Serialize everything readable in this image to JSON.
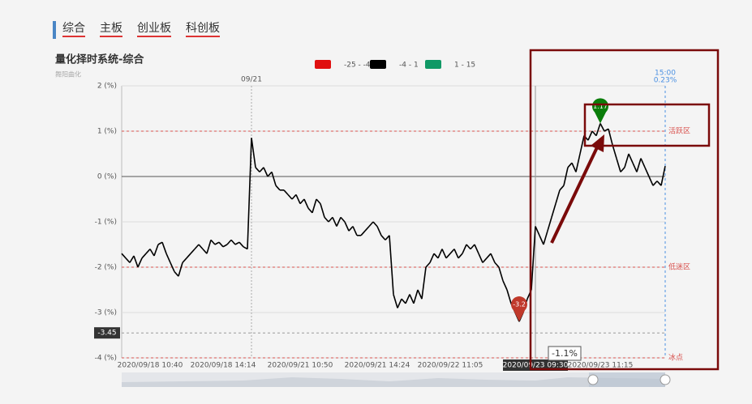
{
  "tabs": [
    "综合",
    "主板",
    "创业板",
    "科创板"
  ],
  "chart_data": {
    "type": "line",
    "title": "量化择时系统-综合",
    "subtitle": "舞阳曲化",
    "legend": [
      {
        "label": "-25 - -4",
        "color": "#e01010",
        "range": [
          -25,
          -4
        ]
      },
      {
        "label": "-4 - 1",
        "color": "#000000",
        "range": [
          -4,
          1
        ]
      },
      {
        "label": "1 - 15",
        "color": "#119966",
        "range": [
          1,
          15
        ]
      }
    ],
    "xlim": [
      0,
      134
    ],
    "xticks": [
      {
        "value": 7,
        "label": "2020/09/18 10:40"
      },
      {
        "value": 25,
        "label": "2020/09/18 14:14"
      },
      {
        "value": 44,
        "label": "2020/09/21 10:50"
      },
      {
        "value": 63,
        "label": "2020/09/21 14:24"
      },
      {
        "value": 81,
        "label": "2020/09/22 11:05"
      },
      {
        "value": 118,
        "label": "2020/09/23 11:15"
      }
    ],
    "ylim": [
      -4,
      2
    ],
    "yticks": [
      {
        "value": 2,
        "label": "2 (%)"
      },
      {
        "value": 1,
        "label": "1 (%)"
      },
      {
        "value": 0,
        "label": "0 (%)"
      },
      {
        "value": -1,
        "label": "-1 (%)"
      },
      {
        "value": -2,
        "label": "-2 (%)"
      },
      {
        "value": -3,
        "label": "-3 (%)"
      },
      {
        "value": -4,
        "label": "-4 (%)"
      }
    ],
    "grid": true,
    "zones": [
      {
        "value": 1,
        "label": "活跃区"
      },
      {
        "value": -2,
        "label": "低迷区"
      },
      {
        "value": -4,
        "label": "冰点"
      }
    ],
    "threshold": {
      "value": -3.45,
      "label": "-3.45"
    },
    "day_marks": [
      {
        "x": 32,
        "label": "09/21"
      }
    ],
    "end": {
      "time": "15:00",
      "value_label": "0.23%"
    },
    "min_label": "-3.2",
    "max_label": "1.17",
    "crosshair": {
      "x": 102,
      "time_label": "2020/09/23 09:30",
      "value_label": "-1.1%"
    },
    "series": [
      {
        "name": "综合",
        "values": [
          -1.7,
          -1.8,
          -1.9,
          -1.75,
          -2.0,
          -1.8,
          -1.7,
          -1.6,
          -1.75,
          -1.5,
          -1.45,
          -1.7,
          -1.9,
          -2.1,
          -2.2,
          -1.9,
          -1.8,
          -1.7,
          -1.6,
          -1.5,
          -1.6,
          -1.7,
          -1.4,
          -1.5,
          -1.45,
          -1.55,
          -1.5,
          -1.4,
          -1.5,
          -1.45,
          -1.55,
          -1.6,
          0.85,
          0.2,
          0.1,
          0.2,
          0.0,
          0.1,
          -0.2,
          -0.3,
          -0.3,
          -0.4,
          -0.5,
          -0.4,
          -0.6,
          -0.5,
          -0.7,
          -0.8,
          -0.5,
          -0.6,
          -0.9,
          -1.0,
          -0.9,
          -1.1,
          -0.9,
          -1.0,
          -1.2,
          -1.1,
          -1.3,
          -1.3,
          -1.2,
          -1.1,
          -1.0,
          -1.1,
          -1.3,
          -1.4,
          -1.3,
          -2.6,
          -2.9,
          -2.7,
          -2.8,
          -2.6,
          -2.8,
          -2.5,
          -2.7,
          -2.0,
          -1.9,
          -1.7,
          -1.8,
          -1.6,
          -1.8,
          -1.7,
          -1.6,
          -1.8,
          -1.7,
          -1.5,
          -1.6,
          -1.5,
          -1.7,
          -1.9,
          -1.8,
          -1.7,
          -1.9,
          -2.0,
          -2.3,
          -2.5,
          -2.8,
          -3.0,
          -3.2,
          -3.0,
          -2.7,
          -2.5,
          -1.1,
          -1.3,
          -1.5,
          -1.2,
          -0.9,
          -0.6,
          -0.3,
          -0.2,
          0.2,
          0.3,
          0.1,
          0.5,
          0.9,
          0.8,
          1.0,
          0.9,
          1.17,
          1.0,
          1.05,
          0.7,
          0.4,
          0.1,
          0.2,
          0.5,
          0.3,
          0.1,
          0.4,
          0.2,
          0.0,
          -0.2,
          -0.1,
          -0.2,
          0.23
        ]
      }
    ]
  }
}
